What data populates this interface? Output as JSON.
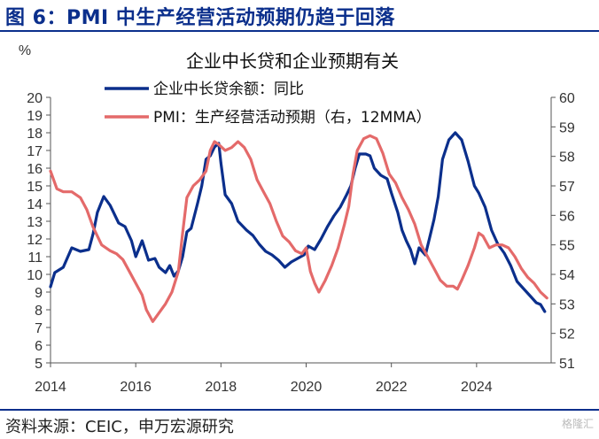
{
  "header": {
    "title": "图 6：PMI 中生产经营活动预期仍趋于回落"
  },
  "footer": {
    "source": "资料来源：CEIC，申万宏源研究",
    "watermark": "格隆汇"
  },
  "chart_data": {
    "type": "line",
    "title": "企业中长贷和企业预期有关",
    "unit_left": "%",
    "x_ticks": [
      "2014",
      "2016",
      "2018",
      "2020",
      "2022",
      "2024"
    ],
    "left_ticks": [
      "5",
      "6",
      "7",
      "8",
      "9",
      "10",
      "11",
      "12",
      "13",
      "14",
      "15",
      "16",
      "17",
      "18",
      "19",
      "20"
    ],
    "right_ticks": [
      "51",
      "52",
      "53",
      "54",
      "55",
      "56",
      "57",
      "58",
      "59",
      "60"
    ],
    "ylim_left": [
      5,
      20
    ],
    "ylim_right": [
      51,
      60
    ],
    "xlim": [
      2014.0,
      2025.75
    ],
    "grid": false,
    "legend_placement": "top",
    "series": [
      {
        "name": "企业中长贷余额：同比",
        "axis": "left",
        "color": "#0b2f8c",
        "points": [
          [
            2014.0,
            9.3
          ],
          [
            2014.1,
            10.1
          ],
          [
            2014.3,
            10.4
          ],
          [
            2014.5,
            11.5
          ],
          [
            2014.7,
            11.3
          ],
          [
            2014.9,
            11.4
          ],
          [
            2015.0,
            12.3
          ],
          [
            2015.1,
            13.5
          ],
          [
            2015.25,
            14.4
          ],
          [
            2015.4,
            13.9
          ],
          [
            2015.6,
            12.9
          ],
          [
            2015.75,
            12.7
          ],
          [
            2015.9,
            11.9
          ],
          [
            2016.0,
            11.0
          ],
          [
            2016.15,
            11.9
          ],
          [
            2016.3,
            10.8
          ],
          [
            2016.45,
            10.9
          ],
          [
            2016.55,
            10.4
          ],
          [
            2016.7,
            10.1
          ],
          [
            2016.8,
            10.5
          ],
          [
            2016.9,
            9.9
          ],
          [
            2017.0,
            10.2
          ],
          [
            2017.1,
            11.0
          ],
          [
            2017.2,
            12.4
          ],
          [
            2017.3,
            12.6
          ],
          [
            2017.45,
            14.0
          ],
          [
            2017.55,
            15.0
          ],
          [
            2017.65,
            16.5
          ],
          [
            2017.75,
            16.7
          ],
          [
            2017.85,
            17.2
          ],
          [
            2017.95,
            17.4
          ],
          [
            2018.0,
            16.3
          ],
          [
            2018.1,
            14.5
          ],
          [
            2018.25,
            14.0
          ],
          [
            2018.4,
            13.0
          ],
          [
            2018.6,
            12.5
          ],
          [
            2018.75,
            12.2
          ],
          [
            2018.9,
            11.7
          ],
          [
            2019.05,
            11.3
          ],
          [
            2019.2,
            11.1
          ],
          [
            2019.35,
            10.8
          ],
          [
            2019.5,
            10.4
          ],
          [
            2019.65,
            10.7
          ],
          [
            2019.8,
            10.9
          ],
          [
            2019.95,
            11.1
          ],
          [
            2020.05,
            11.6
          ],
          [
            2020.2,
            11.4
          ],
          [
            2020.35,
            12.0
          ],
          [
            2020.5,
            12.7
          ],
          [
            2020.65,
            13.3
          ],
          [
            2020.8,
            13.8
          ],
          [
            2020.95,
            14.5
          ],
          [
            2021.05,
            15.0
          ],
          [
            2021.15,
            16.0
          ],
          [
            2021.25,
            16.8
          ],
          [
            2021.4,
            16.8
          ],
          [
            2021.5,
            16.7
          ],
          [
            2021.6,
            16.0
          ],
          [
            2021.75,
            15.6
          ],
          [
            2021.9,
            15.4
          ],
          [
            2022.0,
            14.6
          ],
          [
            2022.15,
            13.5
          ],
          [
            2022.25,
            12.5
          ],
          [
            2022.35,
            11.9
          ],
          [
            2022.45,
            11.4
          ],
          [
            2022.55,
            10.6
          ],
          [
            2022.65,
            11.5
          ],
          [
            2022.8,
            11.1
          ],
          [
            2022.9,
            12.1
          ],
          [
            2023.0,
            13.1
          ],
          [
            2023.1,
            14.4
          ],
          [
            2023.2,
            16.5
          ],
          [
            2023.35,
            17.6
          ],
          [
            2023.5,
            18.0
          ],
          [
            2023.65,
            17.6
          ],
          [
            2023.8,
            16.4
          ],
          [
            2023.95,
            15.0
          ],
          [
            2024.05,
            14.6
          ],
          [
            2024.2,
            13.8
          ],
          [
            2024.35,
            12.5
          ],
          [
            2024.5,
            11.7
          ],
          [
            2024.65,
            11.2
          ],
          [
            2024.8,
            10.5
          ],
          [
            2024.95,
            9.6
          ],
          [
            2025.1,
            9.2
          ],
          [
            2025.25,
            8.8
          ],
          [
            2025.4,
            8.4
          ],
          [
            2025.5,
            8.3
          ],
          [
            2025.6,
            7.9
          ]
        ]
      },
      {
        "name": "PMI：生产经营活动预期（右，12MMA）",
        "axis": "right",
        "color": "#e46a6a",
        "points": [
          [
            2014.0,
            57.5
          ],
          [
            2014.15,
            56.9
          ],
          [
            2014.3,
            56.8
          ],
          [
            2014.5,
            56.8
          ],
          [
            2014.7,
            56.6
          ],
          [
            2014.85,
            56.2
          ],
          [
            2015.0,
            55.6
          ],
          [
            2015.2,
            55.0
          ],
          [
            2015.4,
            54.8
          ],
          [
            2015.55,
            54.7
          ],
          [
            2015.7,
            54.5
          ],
          [
            2015.85,
            54.1
          ],
          [
            2016.0,
            53.7
          ],
          [
            2016.15,
            53.3
          ],
          [
            2016.25,
            52.8
          ],
          [
            2016.4,
            52.4
          ],
          [
            2016.55,
            52.7
          ],
          [
            2016.7,
            53.0
          ],
          [
            2016.85,
            53.4
          ],
          [
            2017.0,
            54.1
          ],
          [
            2017.1,
            55.4
          ],
          [
            2017.2,
            56.6
          ],
          [
            2017.35,
            57.0
          ],
          [
            2017.5,
            57.2
          ],
          [
            2017.65,
            57.5
          ],
          [
            2017.75,
            58.2
          ],
          [
            2017.85,
            58.5
          ],
          [
            2017.95,
            58.4
          ],
          [
            2018.1,
            58.2
          ],
          [
            2018.25,
            58.3
          ],
          [
            2018.4,
            58.5
          ],
          [
            2018.55,
            58.3
          ],
          [
            2018.7,
            57.9
          ],
          [
            2018.85,
            57.2
          ],
          [
            2019.0,
            56.8
          ],
          [
            2019.15,
            56.4
          ],
          [
            2019.3,
            55.8
          ],
          [
            2019.45,
            55.3
          ],
          [
            2019.6,
            55.1
          ],
          [
            2019.75,
            54.8
          ],
          [
            2019.9,
            54.7
          ],
          [
            2020.0,
            54.9
          ],
          [
            2020.1,
            54.1
          ],
          [
            2020.2,
            53.7
          ],
          [
            2020.3,
            53.4
          ],
          [
            2020.45,
            53.8
          ],
          [
            2020.6,
            54.3
          ],
          [
            2020.75,
            54.9
          ],
          [
            2020.9,
            55.7
          ],
          [
            2021.0,
            56.3
          ],
          [
            2021.1,
            57.4
          ],
          [
            2021.2,
            58.2
          ],
          [
            2021.35,
            58.6
          ],
          [
            2021.5,
            58.7
          ],
          [
            2021.65,
            58.6
          ],
          [
            2021.8,
            58.1
          ],
          [
            2021.95,
            57.4
          ],
          [
            2022.1,
            57.1
          ],
          [
            2022.25,
            56.6
          ],
          [
            2022.4,
            56.2
          ],
          [
            2022.55,
            55.7
          ],
          [
            2022.7,
            55.0
          ],
          [
            2022.85,
            54.6
          ],
          [
            2023.0,
            54.2
          ],
          [
            2023.15,
            53.8
          ],
          [
            2023.3,
            53.6
          ],
          [
            2023.45,
            53.6
          ],
          [
            2023.55,
            53.5
          ],
          [
            2023.65,
            53.8
          ],
          [
            2023.8,
            54.3
          ],
          [
            2023.95,
            54.9
          ],
          [
            2024.05,
            55.4
          ],
          [
            2024.15,
            55.3
          ],
          [
            2024.3,
            54.9
          ],
          [
            2024.45,
            55.0
          ],
          [
            2024.6,
            55.0
          ],
          [
            2024.75,
            54.9
          ],
          [
            2024.9,
            54.6
          ],
          [
            2025.05,
            54.2
          ],
          [
            2025.2,
            53.9
          ],
          [
            2025.35,
            53.7
          ],
          [
            2025.5,
            53.4
          ],
          [
            2025.65,
            53.2
          ]
        ]
      }
    ]
  }
}
